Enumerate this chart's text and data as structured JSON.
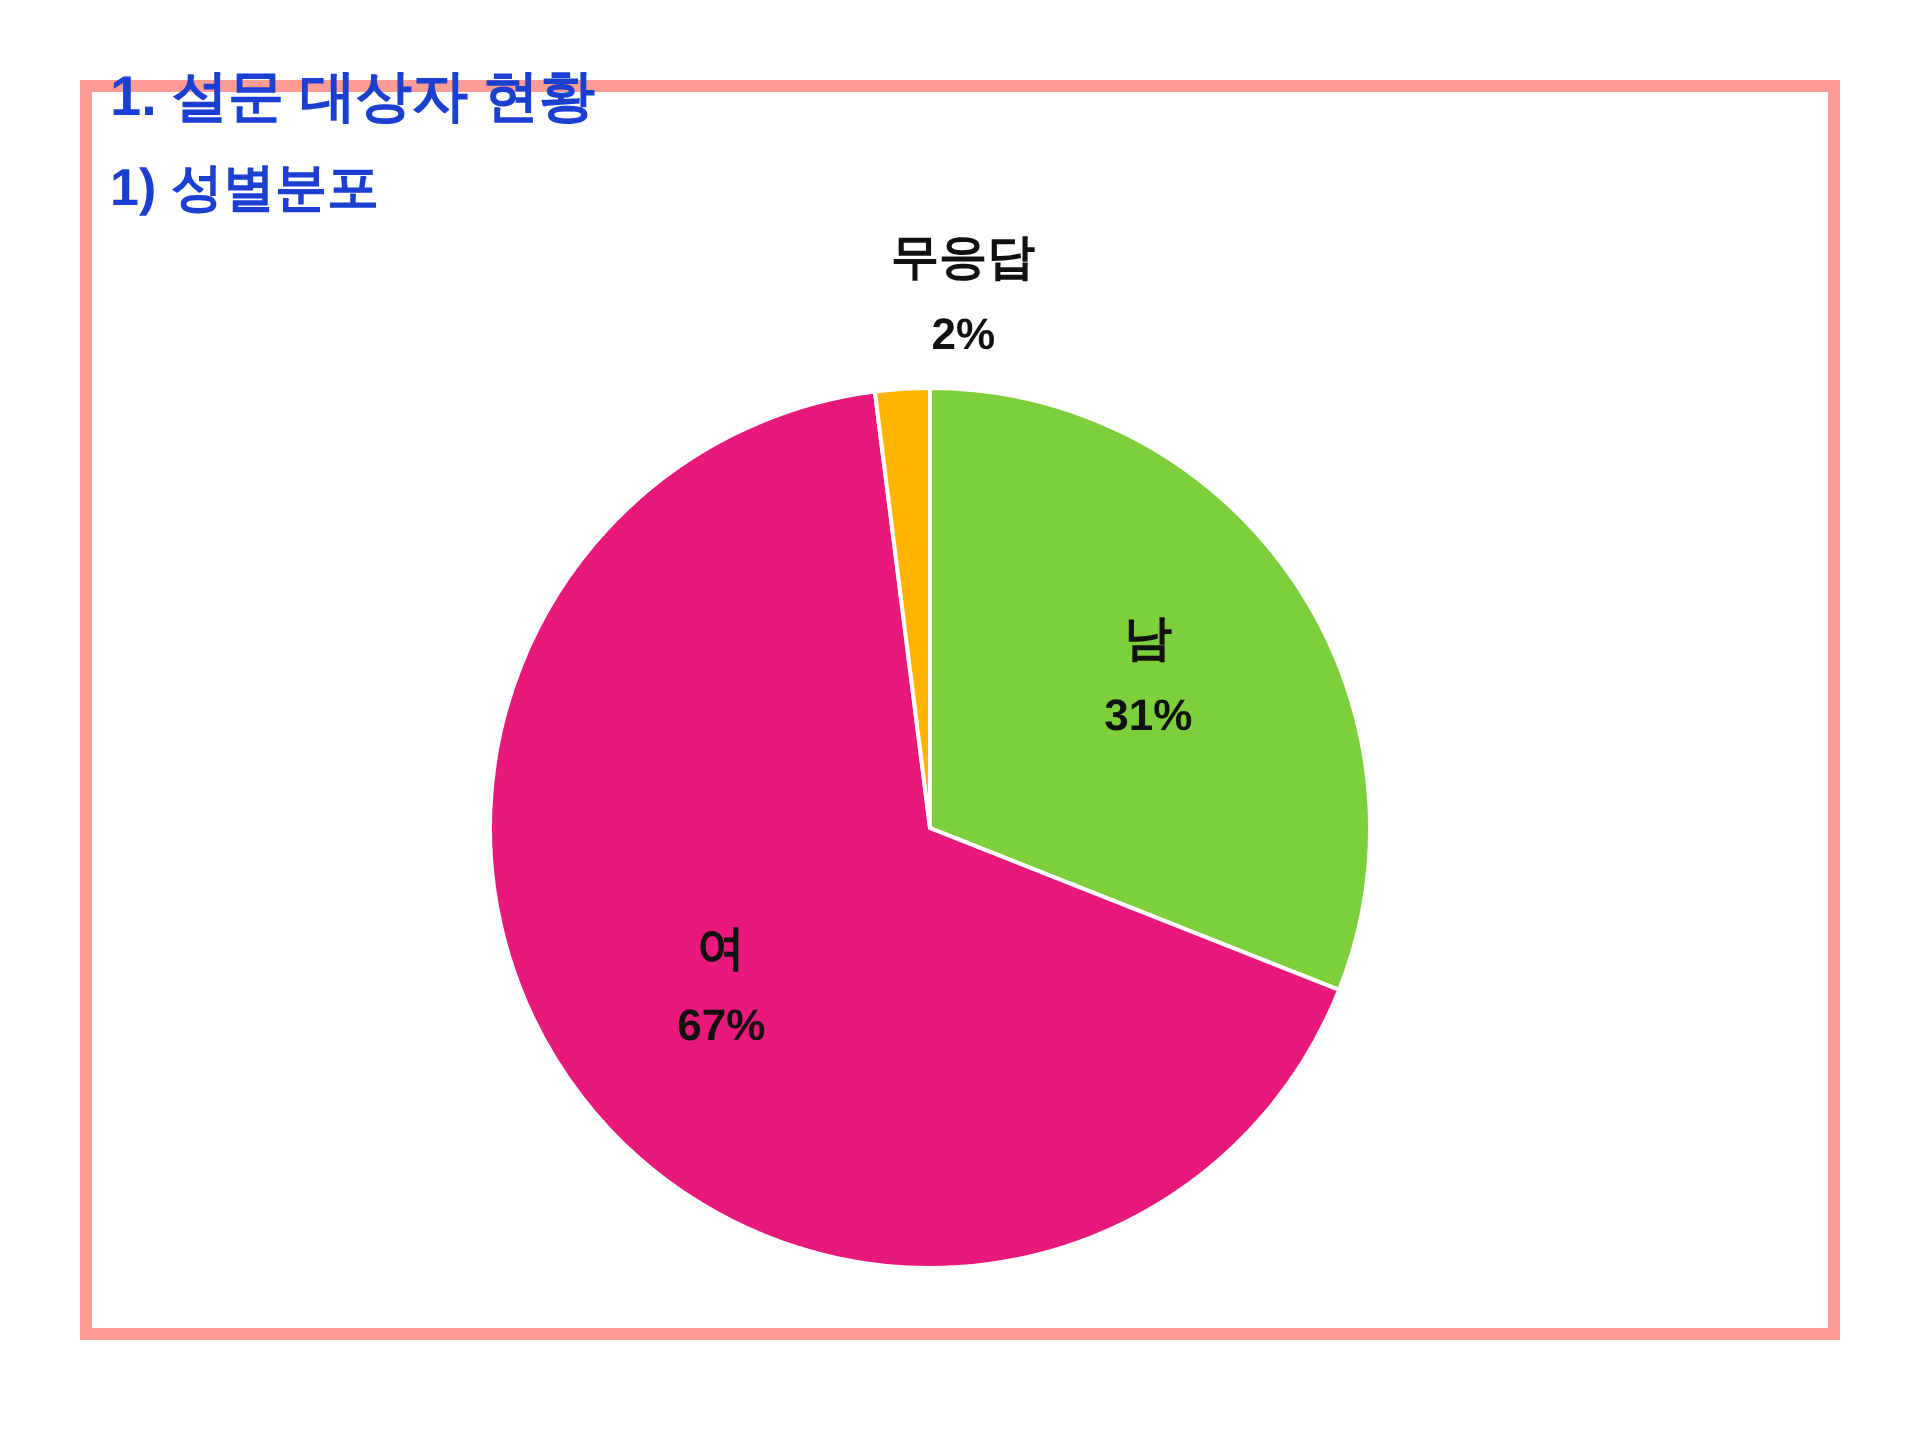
{
  "chart_data": {
    "type": "pie",
    "title": "1.   설문 대상자 현황",
    "subtitle": "1) 성별분포",
    "categories": [
      "남",
      "여",
      "무응답"
    ],
    "values": [
      31,
      67,
      2
    ],
    "colors": [
      "#7dcf3c",
      "#e8197a",
      "#ffb400"
    ],
    "value_labels": [
      "31%",
      "67%",
      "2%"
    ],
    "legend": false
  }
}
